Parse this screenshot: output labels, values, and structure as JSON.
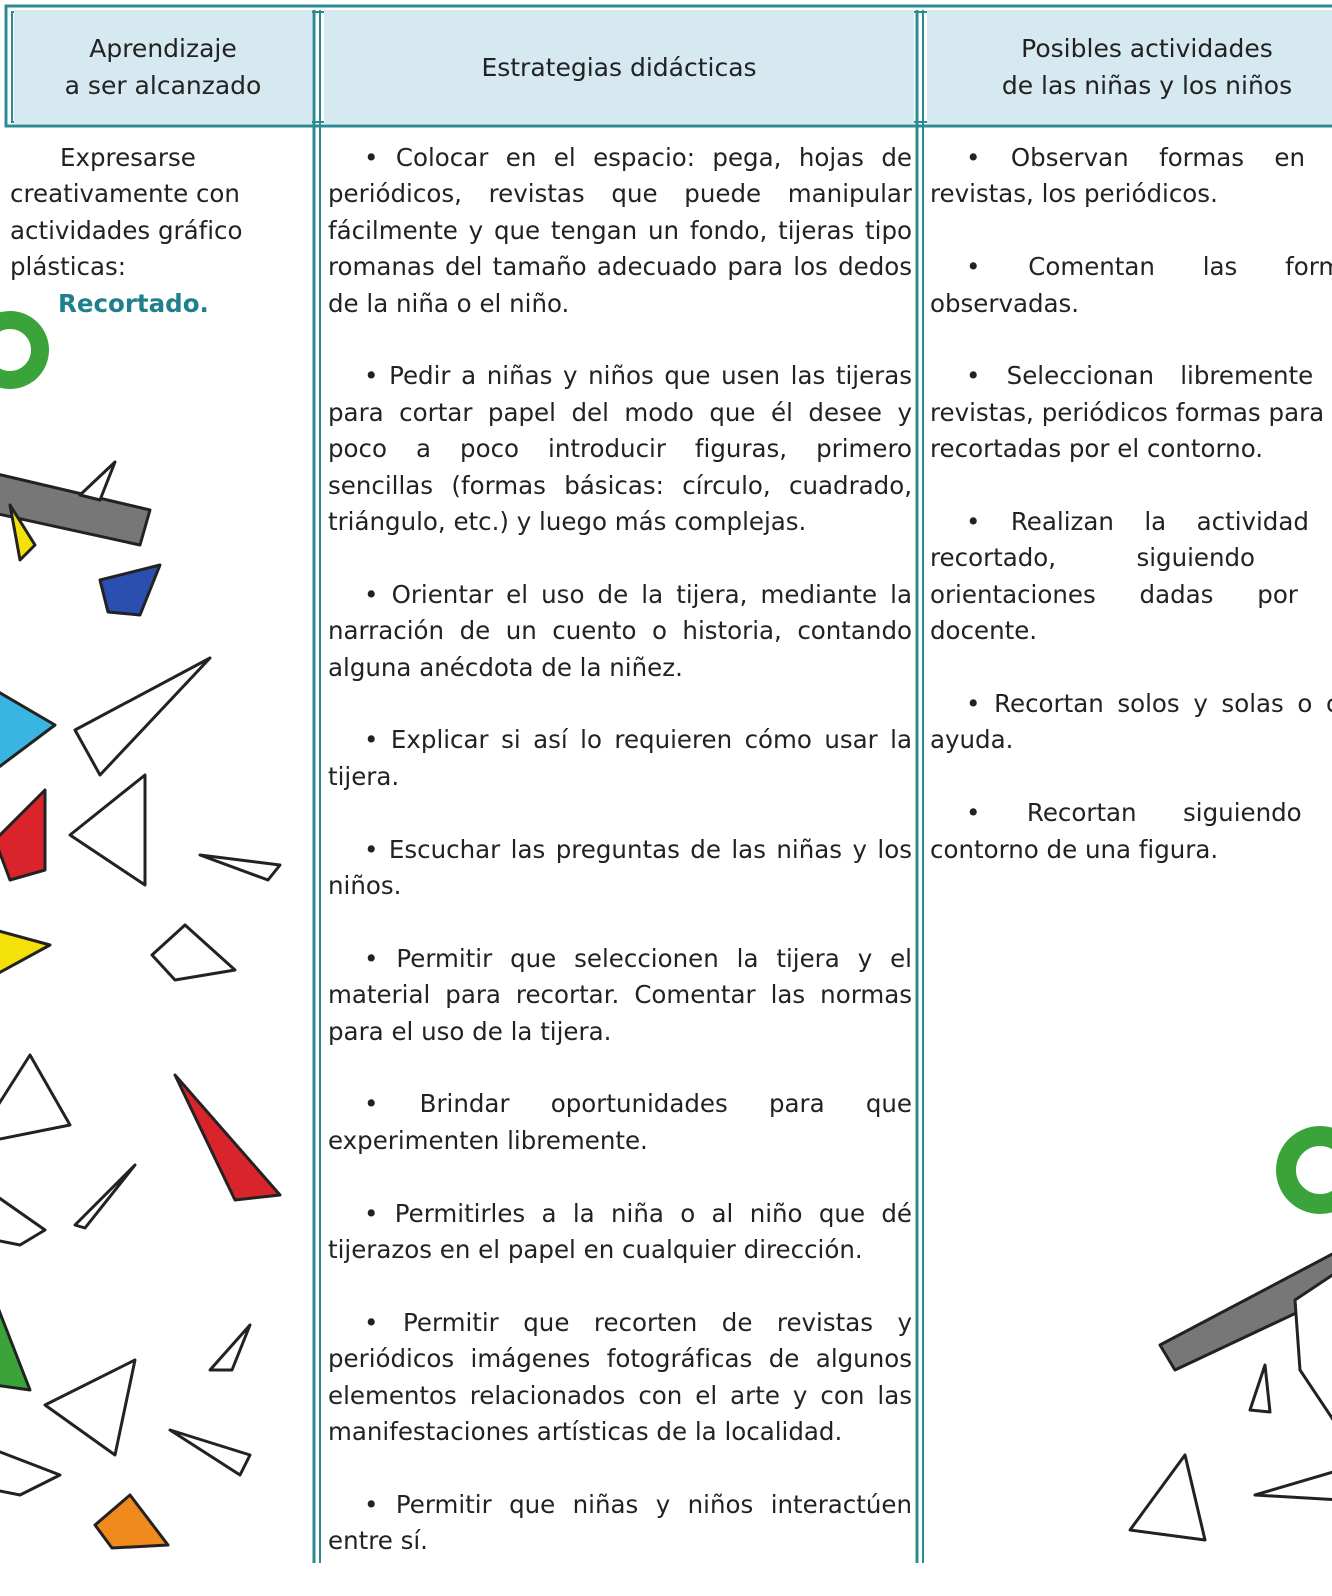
{
  "headers": [
    [
      "Aprendizaje",
      "a ser alcanzado"
    ],
    [
      "Estrategias didácticas"
    ],
    [
      "Posibles actividades",
      "de las niñas y los niños"
    ]
  ],
  "learning": {
    "text": "Expresarse creativamente con actividades gráfico plásticas:",
    "highlight": "Recortado."
  },
  "strategies": [
    "• Colocar en el espacio: pega, hojas de periódicos, revistas que puede manipular fácilmente y que tengan un fondo, tijeras tipo romanas del tamaño adecuado para los dedos de la niña o el niño.",
    "• Pedir a niñas y niños que usen las tijeras para cortar papel del modo que él desee y poco a poco introducir figuras, primero sencillas (formas básicas: círculo, cuadrado, triángulo, etc.) y luego más complejas.",
    "• Orientar el uso de la tijera, mediante la narración de un cuento o historia, contando alguna anécdota de la niñez.",
    "• Explicar si así lo requieren cómo usar la tijera.",
    "• Escuchar las preguntas de las niñas y los niños.",
    "• Permitir que seleccionen la tijera y el material para recortar. Comentar las normas para el uso de la tijera.",
    "• Brindar oportunidades para que experimenten libremente.",
    "• Permitirles a la niña o al niño que dé tijerazos en el papel en cualquier dirección.",
    "• Permitir que recorten de revistas y periódicos imágenes fotográficas de algunos elementos relacionados con el arte y con las manifestaciones artísticas de la localidad.",
    "• Permitir que niñas y niños interactúen entre sí."
  ],
  "activities": [
    "• Observan formas en las revistas, los periódicos.",
    "• Comentan las formas observadas.",
    "• Seleccionan libremente en revistas, periódicos formas para ser recortadas por el contorno.",
    "• Realizan la actividad de recortado, siguiendo las orientaciones dadas por su docente.",
    "• Recortan solos y solas o con ayuda.",
    "• Recortan siguiendo el contorno de una figura."
  ]
}
